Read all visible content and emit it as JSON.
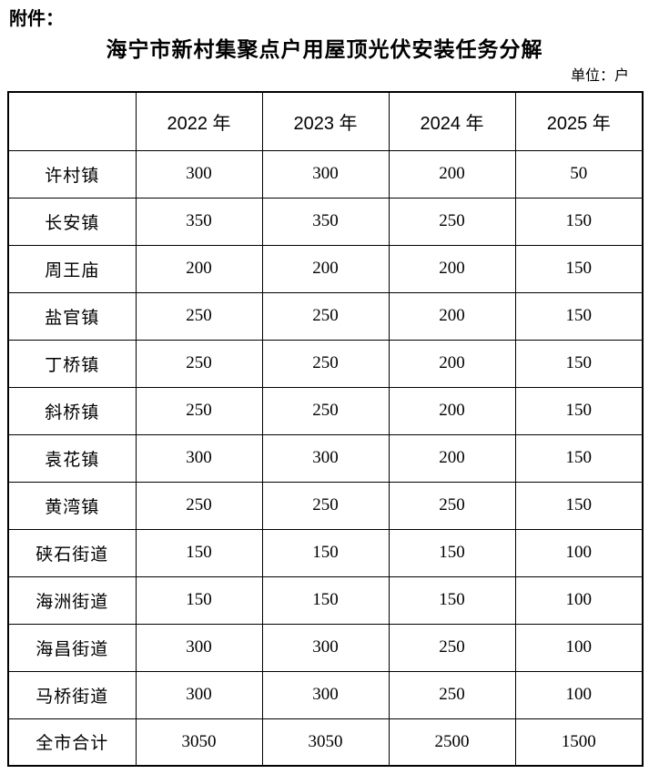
{
  "page": {
    "attachment_label": "附件：",
    "title": "海宁市新村集聚点户用屋顶光伏安装任务分解",
    "unit_label": "单位：户"
  },
  "colors": {
    "background": "#ffffff",
    "text": "#000000",
    "border": "#000000"
  },
  "table": {
    "columns": [
      "",
      "2022 年",
      "2023 年",
      "2024 年",
      "2025 年"
    ],
    "rows": [
      {
        "label": "许村镇",
        "values": [
          "300",
          "300",
          "200",
          "50"
        ]
      },
      {
        "label": "长安镇",
        "values": [
          "350",
          "350",
          "250",
          "150"
        ]
      },
      {
        "label": "周王庙",
        "values": [
          "200",
          "200",
          "200",
          "150"
        ]
      },
      {
        "label": "盐官镇",
        "values": [
          "250",
          "250",
          "200",
          "150"
        ]
      },
      {
        "label": "丁桥镇",
        "values": [
          "250",
          "250",
          "200",
          "150"
        ]
      },
      {
        "label": "斜桥镇",
        "values": [
          "250",
          "250",
          "200",
          "150"
        ]
      },
      {
        "label": "袁花镇",
        "values": [
          "300",
          "300",
          "200",
          "150"
        ]
      },
      {
        "label": "黄湾镇",
        "values": [
          "250",
          "250",
          "250",
          "150"
        ]
      },
      {
        "label": "硖石街道",
        "values": [
          "150",
          "150",
          "150",
          "100"
        ]
      },
      {
        "label": "海洲街道",
        "values": [
          "150",
          "150",
          "150",
          "100"
        ]
      },
      {
        "label": "海昌街道",
        "values": [
          "300",
          "300",
          "250",
          "100"
        ]
      },
      {
        "label": "马桥街道",
        "values": [
          "300",
          "300",
          "250",
          "100"
        ]
      },
      {
        "label": "全市合计",
        "values": [
          "3050",
          "3050",
          "2500",
          "1500"
        ]
      }
    ]
  }
}
